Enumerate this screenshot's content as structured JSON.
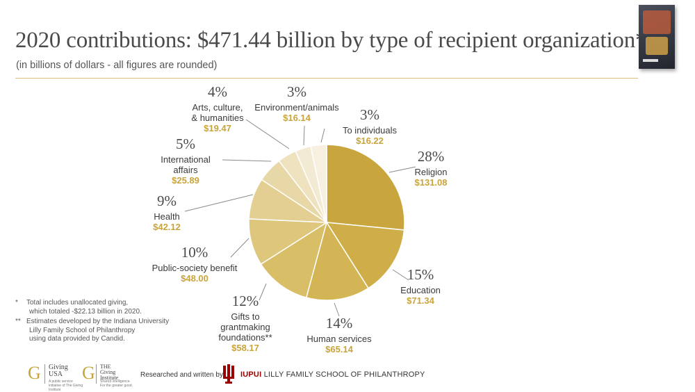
{
  "header": {
    "title": "2020 contributions: $471.44 billion by type of recipient organization*",
    "subtitle": "(in billions of dollars - all figures are rounded)"
  },
  "chart_data": {
    "type": "pie",
    "title": "2020 contributions: $471.44 billion by type of recipient organization*",
    "subtitle": "(in billions of dollars - all figures are rounded)",
    "slices": [
      {
        "name": "Religion",
        "name_lines": [
          "Religion"
        ],
        "percent": "28%",
        "value": 131.08,
        "value_label": "$131.08",
        "color": "#c9a63d"
      },
      {
        "name": "Education",
        "name_lines": [
          "Education"
        ],
        "percent": "15%",
        "value": 71.34,
        "value_label": "$71.34",
        "color": "#cfad48"
      },
      {
        "name": "Human services",
        "name_lines": [
          "Human services"
        ],
        "percent": "14%",
        "value": 65.14,
        "value_label": "$65.14",
        "color": "#d4b555"
      },
      {
        "name": "Gifts to grantmaking foundations**",
        "name_lines": [
          "Gifts to",
          "grantmaking",
          "foundations**"
        ],
        "percent": "12%",
        "value": 58.17,
        "value_label": "$58.17",
        "color": "#d9be68"
      },
      {
        "name": "Public-society benefit",
        "name_lines": [
          "Public-society benefit"
        ],
        "percent": "10%",
        "value": 48.0,
        "value_label": "$48.00",
        "color": "#dec77c"
      },
      {
        "name": "Health",
        "name_lines": [
          "Health"
        ],
        "percent": "9%",
        "value": 42.12,
        "value_label": "$42.12",
        "color": "#e3cf91"
      },
      {
        "name": "International affairs",
        "name_lines": [
          "International",
          "affairs"
        ],
        "percent": "5%",
        "value": 25.89,
        "value_label": "$25.89",
        "color": "#e8d8a7"
      },
      {
        "name": "Arts, culture, & humanities",
        "name_lines": [
          "Arts, culture,",
          "& humanities"
        ],
        "percent": "4%",
        "value": 19.47,
        "value_label": "$19.47",
        "color": "#eee2bf"
      },
      {
        "name": "Environment/animals",
        "name_lines": [
          "Environment/animals"
        ],
        "percent": "3%",
        "value": 16.14,
        "value_label": "$16.14",
        "color": "#f3ead3"
      },
      {
        "name": "To individuals",
        "name_lines": [
          "To individuals"
        ],
        "percent": "3%",
        "value": 16.22,
        "value_label": "$16.22",
        "color": "#f7f0e1"
      }
    ]
  },
  "notes": [
    {
      "mark": "*",
      "lines": [
        "Total includes unallocated giving,",
        "which totaled -$22.13 billion in 2020."
      ]
    },
    {
      "mark": "**",
      "lines": [
        "Estimates developed by the Indiana University",
        "Lilly Family School of Philanthropy",
        "using data provided by Candid."
      ]
    }
  ],
  "footer": {
    "logo1_mark": "G",
    "logo1_text": [
      "Giving",
      "USA"
    ],
    "logo1_small": "A public service initiative of The Giving Institute",
    "logo2_mark": "G",
    "logo2_text": [
      "THE",
      "Giving",
      "Institute"
    ],
    "logo2_small": "Shared intelligence. For the greater good.",
    "researched": "Researched and written by",
    "school_bold": "IUPUI",
    "school_rest": "LILLY FAMILY SCHOOL OF PHILANTHROPY"
  },
  "colors": {
    "accent": "#c9a43b",
    "iu_red": "#990000",
    "rule": "#d9c07a"
  }
}
